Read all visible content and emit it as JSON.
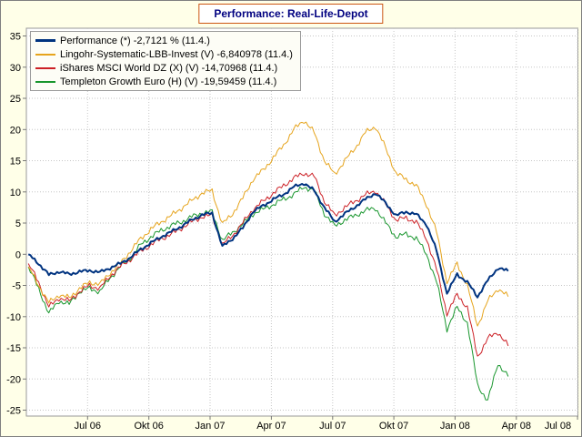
{
  "title": "Performance: Real-Life-Depot",
  "colors": {
    "background": "#ffffe8",
    "plot_background": "#ffffff",
    "grid": "#c6c6c6",
    "title_text": "#000080",
    "title_border": "#cc5511",
    "axis_text": "#000000"
  },
  "chart_data": {
    "type": "line",
    "title": "Performance: Real-Life-Depot",
    "x_tick_labels": [
      "Jul 06",
      "Okt 06",
      "Jan 07",
      "Apr 07",
      "Jul 07",
      "Okt 07",
      "Jan 08",
      "Apr 08",
      "Jul 08"
    ],
    "y_ticks": [
      35,
      30,
      25,
      20,
      15,
      10,
      5,
      0,
      -5,
      -10,
      -15,
      -20,
      -25
    ],
    "ylim": [
      -26,
      36
    ],
    "grid": "dotted",
    "legend_position": "top-left",
    "x_sampling": {
      "start": "2006-05",
      "end": "2008-04-11",
      "step_months": 0.5
    },
    "series": [
      {
        "name": "Performance",
        "legend": "Performance (*) -2,7121 % (11.4.)",
        "color": "#003380",
        "width": 2,
        "values": [
          0,
          -1.5,
          -3.3,
          -2.8,
          -3.2,
          -2.8,
          -2.6,
          -2.9,
          -2.2,
          -1.5,
          -0.5,
          0.8,
          1.8,
          2.8,
          3.6,
          4.5,
          5.5,
          6.3,
          6.6,
          1.2,
          2.5,
          4.2,
          6.8,
          7.8,
          8.8,
          9.6,
          10.8,
          11.4,
          10.2,
          7.5,
          5.2,
          6.5,
          7.6,
          8.8,
          9.8,
          8.2,
          6.2,
          6.8,
          6.4,
          4.8,
          0.5,
          -6.3,
          -3.2,
          -4.5,
          -6.8,
          -4.2,
          -2.2,
          -2.7
        ]
      },
      {
        "name": "Lingohr-Systematic-LBB-Invest",
        "legend": "Lingohr-Systematic-LBB-Invest (V) -6,840978 (11.4.)",
        "color": "#e6a41c",
        "width": 1,
        "values": [
          -2,
          -5,
          -7.8,
          -6.5,
          -7,
          -5.5,
          -4.5,
          -4.8,
          -3,
          -1.5,
          0.5,
          2.5,
          4,
          5.2,
          6.2,
          7.4,
          8.6,
          9.8,
          10.2,
          4.8,
          6.5,
          9,
          12,
          13.5,
          15.5,
          17.5,
          20,
          21.5,
          19.5,
          15,
          12.8,
          15,
          17,
          19.5,
          20.5,
          17,
          13,
          12,
          11,
          8,
          3.5,
          -4.5,
          -1.5,
          -5,
          -11.5,
          -7.5,
          -5.5,
          -6.8
        ]
      },
      {
        "name": "iShares MSCI World DZ",
        "legend": "iShares MSCI World DZ (X) (V) -14,70968 (11.4.)",
        "color": "#cc2026",
        "width": 1,
        "values": [
          -1.5,
          -4.5,
          -8.5,
          -7,
          -7.5,
          -6,
          -5,
          -5.5,
          -3.5,
          -2,
          -0.8,
          0.5,
          1.5,
          2.5,
          3.2,
          4.2,
          5.2,
          6,
          6.2,
          1.5,
          3,
          5,
          7.2,
          8.5,
          9.8,
          11,
          12.2,
          13,
          12.5,
          8.5,
          6.2,
          7.5,
          8.5,
          9.5,
          10.2,
          8,
          5.5,
          5.8,
          5.2,
          2.5,
          -2.5,
          -9.5,
          -6.5,
          -8.5,
          -16.5,
          -13.5,
          -12.5,
          -14.7
        ]
      },
      {
        "name": "Templeton Growth Euro",
        "legend": "Templeton Growth Euro (H) (V) -19,59459 (11.4.)",
        "color": "#18962d",
        "width": 1,
        "values": [
          -2,
          -5.5,
          -9.5,
          -7.5,
          -8,
          -6,
          -5.5,
          -6,
          -3.8,
          -2,
          -0.5,
          1.5,
          2.8,
          3.8,
          4.6,
          5.2,
          6,
          6.6,
          6.8,
          2.2,
          3.5,
          4.8,
          6.5,
          7.2,
          8,
          8.8,
          9.6,
          10.8,
          10.2,
          6.5,
          4.5,
          5.5,
          6.2,
          7,
          7.4,
          5,
          2.8,
          3.2,
          2.6,
          0,
          -4.5,
          -12,
          -8.5,
          -11,
          -21,
          -23.5,
          -17.5,
          -19.6
        ]
      }
    ]
  }
}
